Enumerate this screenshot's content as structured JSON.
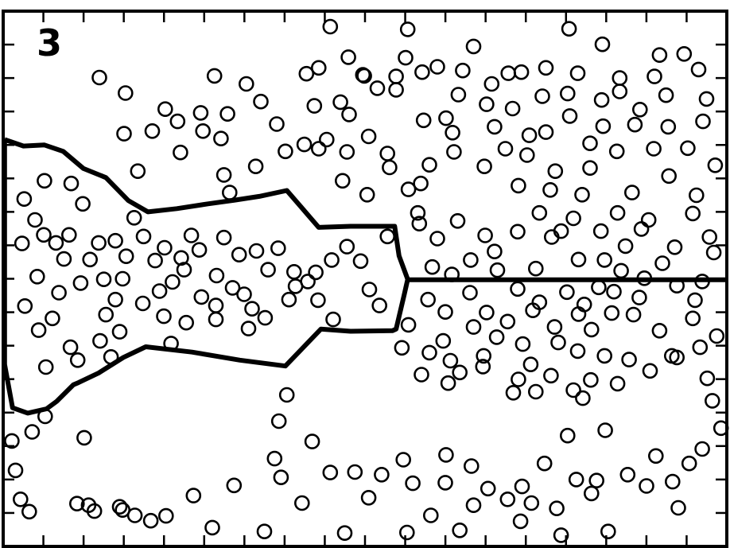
{
  "chart_data": {
    "type": "scatter",
    "panel_label": "3",
    "title": "",
    "xlabel": "",
    "ylabel": "",
    "xlim": [
      0,
      100
    ],
    "ylim": [
      0,
      100
    ],
    "grid": false,
    "legend": "none",
    "marker": "open-circle",
    "x_ticks": 18,
    "y_ticks": 16,
    "midline_y": 49.8,
    "boundary": [
      [
        0.2,
        76.0
      ],
      [
        2.8,
        74.8
      ],
      [
        5.7,
        75.0
      ],
      [
        8.3,
        73.8
      ],
      [
        11.1,
        70.6
      ],
      [
        14.2,
        68.9
      ],
      [
        17.3,
        64.6
      ],
      [
        20.0,
        62.5
      ],
      [
        24.0,
        63.1
      ],
      [
        28.3,
        64.0
      ],
      [
        32.0,
        64.7
      ],
      [
        35.4,
        65.4
      ],
      [
        39.2,
        66.5
      ],
      [
        43.6,
        59.6
      ],
      [
        48.0,
        59.8
      ],
      [
        54.1,
        59.8
      ],
      [
        54.7,
        54.3
      ],
      [
        55.9,
        49.9
      ],
      [
        55.4,
        46.9
      ],
      [
        54.3,
        40.6
      ],
      [
        53.8,
        40.3
      ],
      [
        48.0,
        40.2
      ],
      [
        43.9,
        40.6
      ],
      [
        39.0,
        33.7
      ],
      [
        32.7,
        34.8
      ],
      [
        26.1,
        36.3
      ],
      [
        19.7,
        37.3
      ],
      [
        16.6,
        35.3
      ],
      [
        13.2,
        32.4
      ],
      [
        10.4,
        30.6
      ],
      [
        9.7,
        30.2
      ],
      [
        7.4,
        27.1
      ],
      [
        6.0,
        25.7
      ],
      [
        3.4,
        24.9
      ],
      [
        1.3,
        25.9
      ],
      [
        0.2,
        34.0
      ]
    ],
    "points": [
      [
        28.9,
        3.5
      ],
      [
        45.2,
        97.1
      ],
      [
        49.7,
        88.1
      ],
      [
        55.6,
        91.3
      ],
      [
        78.2,
        96.7
      ],
      [
        82.8,
        93.8
      ],
      [
        90.7,
        91.8
      ],
      [
        55.9,
        96.6
      ],
      [
        65.0,
        93.4
      ],
      [
        69.8,
        88.4
      ],
      [
        75.0,
        89.4
      ],
      [
        78.0,
        84.6
      ],
      [
        67.5,
        86.4
      ],
      [
        82.7,
        83.4
      ],
      [
        74.5,
        84.1
      ],
      [
        85.2,
        85.0
      ],
      [
        94.1,
        92.0
      ],
      [
        96.1,
        89.1
      ],
      [
        91.6,
        84.3
      ],
      [
        90.0,
        87.8
      ],
      [
        85.2,
        87.5
      ],
      [
        79.4,
        88.4
      ],
      [
        71.6,
        88.6
      ],
      [
        63.5,
        88.9
      ],
      [
        60.0,
        89.6
      ],
      [
        54.3,
        87.8
      ],
      [
        49.9,
        87.9
      ],
      [
        43.6,
        89.4
      ],
      [
        41.9,
        88.3
      ],
      [
        33.6,
        86.4
      ],
      [
        29.2,
        87.9
      ],
      [
        16.9,
        84.7
      ],
      [
        13.3,
        87.6
      ],
      [
        43.0,
        82.3
      ],
      [
        46.6,
        83.0
      ],
      [
        47.8,
        80.7
      ],
      [
        51.7,
        85.6
      ],
      [
        58.1,
        79.6
      ],
      [
        61.2,
        80.0
      ],
      [
        62.9,
        84.4
      ],
      [
        67.9,
        78.4
      ],
      [
        70.4,
        81.8
      ],
      [
        69.4,
        74.3
      ],
      [
        75.0,
        77.4
      ],
      [
        78.3,
        80.4
      ],
      [
        81.1,
        75.3
      ],
      [
        82.9,
        78.5
      ],
      [
        87.3,
        78.8
      ],
      [
        91.9,
        78.4
      ],
      [
        97.2,
        83.6
      ],
      [
        94.6,
        74.4
      ],
      [
        89.9,
        74.3
      ],
      [
        84.8,
        73.8
      ],
      [
        81.1,
        70.7
      ],
      [
        76.3,
        70.1
      ],
      [
        72.4,
        73.1
      ],
      [
        71.2,
        67.4
      ],
      [
        66.5,
        71.0
      ],
      [
        62.3,
        73.7
      ],
      [
        58.9,
        71.3
      ],
      [
        57.7,
        67.8
      ],
      [
        53.4,
        70.8
      ],
      [
        53.1,
        73.4
      ],
      [
        50.5,
        76.6
      ],
      [
        47.5,
        73.7
      ],
      [
        44.7,
        76.0
      ],
      [
        41.6,
        75.1
      ],
      [
        37.8,
        78.9
      ],
      [
        35.6,
        83.1
      ],
      [
        31.0,
        80.8
      ],
      [
        27.3,
        81.0
      ],
      [
        24.1,
        79.4
      ],
      [
        22.4,
        81.7
      ],
      [
        20.6,
        77.6
      ],
      [
        16.7,
        77.1
      ],
      [
        18.6,
        70.1
      ],
      [
        24.5,
        73.6
      ],
      [
        27.6,
        77.6
      ],
      [
        30.1,
        76.2
      ],
      [
        30.5,
        69.4
      ],
      [
        31.3,
        66.1
      ],
      [
        34.9,
        71.0
      ],
      [
        39.0,
        73.8
      ],
      [
        43.6,
        74.3
      ],
      [
        46.9,
        68.3
      ],
      [
        50.3,
        65.7
      ],
      [
        56.0,
        66.7
      ],
      [
        57.3,
        62.3
      ],
      [
        60.0,
        57.5
      ],
      [
        62.8,
        60.8
      ],
      [
        66.6,
        58.1
      ],
      [
        67.9,
        55.1
      ],
      [
        71.1,
        58.8
      ],
      [
        74.1,
        62.3
      ],
      [
        75.8,
        57.8
      ],
      [
        77.1,
        58.9
      ],
      [
        79.5,
        53.6
      ],
      [
        82.6,
        58.9
      ],
      [
        83.1,
        53.5
      ],
      [
        86.0,
        56.1
      ],
      [
        88.2,
        59.3
      ],
      [
        91.1,
        52.9
      ],
      [
        92.8,
        55.9
      ],
      [
        95.3,
        62.2
      ],
      [
        97.6,
        57.8
      ],
      [
        98.2,
        54.9
      ],
      [
        96.6,
        49.5
      ],
      [
        93.1,
        48.7
      ],
      [
        88.6,
        50.1
      ],
      [
        85.4,
        51.5
      ],
      [
        82.3,
        48.4
      ],
      [
        77.9,
        47.5
      ],
      [
        73.6,
        51.9
      ],
      [
        71.1,
        48.1
      ],
      [
        68.3,
        51.6
      ],
      [
        64.6,
        53.5
      ],
      [
        62.0,
        50.8
      ],
      [
        59.3,
        52.2
      ],
      [
        58.7,
        46.1
      ],
      [
        61.1,
        43.8
      ],
      [
        64.5,
        47.4
      ],
      [
        66.8,
        43.7
      ],
      [
        69.7,
        42.0
      ],
      [
        73.2,
        44.1
      ],
      [
        76.2,
        41.0
      ],
      [
        79.5,
        43.4
      ],
      [
        81.3,
        40.5
      ],
      [
        84.1,
        43.6
      ],
      [
        87.1,
        43.3
      ],
      [
        90.7,
        40.3
      ],
      [
        95.3,
        42.6
      ],
      [
        96.3,
        37.2
      ],
      [
        93.1,
        35.3
      ],
      [
        89.4,
        32.8
      ],
      [
        86.5,
        34.9
      ],
      [
        83.1,
        35.6
      ],
      [
        81.2,
        31.1
      ],
      [
        79.4,
        36.5
      ],
      [
        76.7,
        38.1
      ],
      [
        72.9,
        34.0
      ],
      [
        71.8,
        37.8
      ],
      [
        68.2,
        39.1
      ],
      [
        66.4,
        35.6
      ],
      [
        63.1,
        32.5
      ],
      [
        60.8,
        38.4
      ],
      [
        58.9,
        36.2
      ],
      [
        56.0,
        41.4
      ],
      [
        55.1,
        37.1
      ],
      [
        61.5,
        30.5
      ],
      [
        66.3,
        33.6
      ],
      [
        71.2,
        31.2
      ],
      [
        75.7,
        31.9
      ],
      [
        78.8,
        29.2
      ],
      [
        84.9,
        30.4
      ],
      [
        92.4,
        35.6
      ],
      [
        97.3,
        31.4
      ],
      [
        98.0,
        27.2
      ],
      [
        96.6,
        18.2
      ],
      [
        94.8,
        15.5
      ],
      [
        92.5,
        12.1
      ],
      [
        88.9,
        11.3
      ],
      [
        86.3,
        13.4
      ],
      [
        82.0,
        12.3
      ],
      [
        81.3,
        9.9
      ],
      [
        79.2,
        12.5
      ],
      [
        76.5,
        7.1
      ],
      [
        73.0,
        8.1
      ],
      [
        67.0,
        10.8
      ],
      [
        64.7,
        15.0
      ],
      [
        61.1,
        11.9
      ],
      [
        56.6,
        11.8
      ],
      [
        52.3,
        13.4
      ],
      [
        50.5,
        9.1
      ],
      [
        48.6,
        13.9
      ],
      [
        45.2,
        13.8
      ],
      [
        42.7,
        19.6
      ],
      [
        38.4,
        12.9
      ],
      [
        38.1,
        23.4
      ],
      [
        39.2,
        28.3
      ],
      [
        37.5,
        16.4
      ],
      [
        26.3,
        9.5
      ],
      [
        22.5,
        5.7
      ],
      [
        18.2,
        5.8
      ],
      [
        16.1,
        7.4
      ],
      [
        12.6,
        6.6
      ],
      [
        11.8,
        7.7
      ],
      [
        11.2,
        20.3
      ],
      [
        5.8,
        24.3
      ],
      [
        4.0,
        21.4
      ],
      [
        1.7,
        14.2
      ],
      [
        1.2,
        19.7
      ],
      [
        3.6,
        6.5
      ],
      [
        4.9,
        40.4
      ],
      [
        3.0,
        44.9
      ],
      [
        4.7,
        50.4
      ],
      [
        2.6,
        56.6
      ],
      [
        4.4,
        61.0
      ],
      [
        2.9,
        64.9
      ],
      [
        5.7,
        68.3
      ],
      [
        9.4,
        67.8
      ],
      [
        11.0,
        64.0
      ],
      [
        9.1,
        58.2
      ],
      [
        7.3,
        56.7
      ],
      [
        5.6,
        58.2
      ],
      [
        8.4,
        53.7
      ],
      [
        10.7,
        49.2
      ],
      [
        7.7,
        47.4
      ],
      [
        6.8,
        42.6
      ],
      [
        9.3,
        37.2
      ],
      [
        13.4,
        38.4
      ],
      [
        14.2,
        43.3
      ],
      [
        15.5,
        46.1
      ],
      [
        17.0,
        54.2
      ],
      [
        19.4,
        57.9
      ],
      [
        22.3,
        55.8
      ],
      [
        25.0,
        51.7
      ],
      [
        23.4,
        49.4
      ],
      [
        21.6,
        47.7
      ],
      [
        22.2,
        43.0
      ],
      [
        25.3,
        41.8
      ],
      [
        27.4,
        46.6
      ],
      [
        29.4,
        45.0
      ],
      [
        31.7,
        48.3
      ],
      [
        34.4,
        44.4
      ],
      [
        36.2,
        42.7
      ],
      [
        39.5,
        46.1
      ],
      [
        42.1,
        49.5
      ],
      [
        45.4,
        53.5
      ],
      [
        47.5,
        56.0
      ],
      [
        49.4,
        53.3
      ],
      [
        50.6,
        48.0
      ],
      [
        52.0,
        45.0
      ],
      [
        45.6,
        42.4
      ],
      [
        43.5,
        46.0
      ],
      [
        40.2,
        51.3
      ],
      [
        38.0,
        55.7
      ],
      [
        35.0,
        55.2
      ],
      [
        32.6,
        54.5
      ],
      [
        29.5,
        50.6
      ],
      [
        27.1,
        55.4
      ],
      [
        24.6,
        53.9
      ],
      [
        21.0,
        53.4
      ],
      [
        36.6,
        51.7
      ],
      [
        33.3,
        47.1
      ],
      [
        40.4,
        48.6
      ],
      [
        43.2,
        51.2
      ],
      [
        30.5,
        57.7
      ],
      [
        26.0,
        58.1
      ],
      [
        18.1,
        61.4
      ],
      [
        15.5,
        57.1
      ],
      [
        13.2,
        56.7
      ],
      [
        12.0,
        53.6
      ],
      [
        13.9,
        49.9
      ],
      [
        16.5,
        50.0
      ],
      [
        19.3,
        45.4
      ],
      [
        29.4,
        42.4
      ],
      [
        33.9,
        40.7
      ],
      [
        23.2,
        37.9
      ],
      [
        5.9,
        33.5
      ],
      [
        10.3,
        34.8
      ],
      [
        16.1,
        40.1
      ],
      [
        14.9,
        35.4
      ],
      [
        47.7,
        91.4
      ],
      [
        54.3,
        85.3
      ],
      [
        57.9,
        88.6
      ],
      [
        62.1,
        77.3
      ],
      [
        66.8,
        82.6
      ],
      [
        72.7,
        76.8
      ],
      [
        88.0,
        81.6
      ],
      [
        96.7,
        79.4
      ],
      [
        92.0,
        69.2
      ],
      [
        86.9,
        66.1
      ],
      [
        80.0,
        65.7
      ],
      [
        75.6,
        66.6
      ],
      [
        78.8,
        61.3
      ],
      [
        84.9,
        62.3
      ],
      [
        89.2,
        61.0
      ],
      [
        57.5,
        60.3
      ],
      [
        53.1,
        57.9
      ],
      [
        80.3,
        45.2
      ],
      [
        84.4,
        47.6
      ],
      [
        87.9,
        46.5
      ],
      [
        74.1,
        45.6
      ],
      [
        65.0,
        41.0
      ],
      [
        61.8,
        34.7
      ],
      [
        57.8,
        32.1
      ],
      [
        70.5,
        28.7
      ],
      [
        73.6,
        28.9
      ],
      [
        80.1,
        27.7
      ],
      [
        83.2,
        21.7
      ],
      [
        78.0,
        20.7
      ],
      [
        74.8,
        15.5
      ],
      [
        71.7,
        11.2
      ],
      [
        69.7,
        8.8
      ],
      [
        65.0,
        7.7
      ],
      [
        63.1,
        3.0
      ],
      [
        59.1,
        5.8
      ],
      [
        55.8,
        2.6
      ],
      [
        47.2,
        2.5
      ],
      [
        41.3,
        8.1
      ],
      [
        36.1,
        2.8
      ],
      [
        31.9,
        11.4
      ],
      [
        20.4,
        4.8
      ],
      [
        16.5,
        6.8
      ],
      [
        10.2,
        8.0
      ],
      [
        2.4,
        8.8
      ],
      [
        90.2,
        16.9
      ],
      [
        93.3,
        7.2
      ],
      [
        83.6,
        2.8
      ],
      [
        77.1,
        2.1
      ],
      [
        71.5,
        4.7
      ],
      [
        61.2,
        17.1
      ],
      [
        55.3,
        16.2
      ],
      [
        95.6,
        46.0
      ],
      [
        98.4,
        71.2
      ],
      [
        95.8,
        65.6
      ],
      [
        98.6,
        39.3
      ],
      [
        99.2,
        22.1
      ]
    ]
  }
}
